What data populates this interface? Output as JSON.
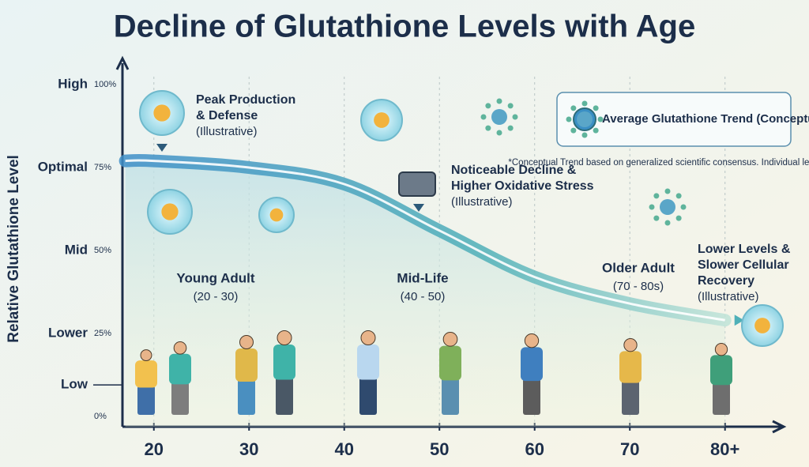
{
  "chart_data": {
    "type": "line",
    "title": "Decline of Glutathione Levels with Age",
    "y_label": "Relative Glutathione Level",
    "xlim": [
      16.7,
      86
    ],
    "xticks": [
      20,
      30,
      40,
      50,
      60,
      70,
      {
        "value": 80,
        "label": "80+"
      }
    ],
    "ylim": [
      0,
      100
    ],
    "yticks": [
      {
        "value": 100,
        "label": "100%"
      },
      {
        "value": 75,
        "label": "75%"
      },
      {
        "value": 50,
        "label": "50%"
      },
      {
        "value": 25,
        "label": "25%"
      },
      {
        "value": 0,
        "label": "0%"
      }
    ],
    "y_levels": [
      {
        "value": 100,
        "label": "High"
      },
      {
        "value": 75,
        "label": "Optimal"
      },
      {
        "value": 50,
        "label": "Mid"
      },
      {
        "value": 25,
        "label": "Lower"
      },
      {
        "value": 9.5,
        "label": "Low"
      }
    ],
    "grid": true,
    "series": [
      {
        "name": "Average Glutathione Trend (Conceptual)",
        "color": "#3a8fc4",
        "x": [
          17,
          20,
          30,
          40,
          50,
          60,
          70,
          80
        ],
        "values": [
          77,
          77,
          75,
          70,
          56,
          42,
          34,
          29
        ]
      }
    ],
    "note": "*Conceptual Trend based on generalized scientific consensus. Individual levels vary.*",
    "age_groups": [
      {
        "name": "Young Adult",
        "range": "(20 - 30)"
      },
      {
        "name": "Mid-Life",
        "range": "(40 - 50)"
      },
      {
        "name": "Older Adult",
        "range": "(70 - 80s)"
      }
    ],
    "callouts": [
      {
        "lines": [
          "Peak Production",
          "& Defense",
          "(Illustrative)"
        ]
      },
      {
        "lines": [
          "Noticeable Decline &",
          "Higher Oxidative Stress",
          "(Illustrative)"
        ]
      },
      {
        "lines": [
          "Lower Levels &",
          "Slower Cellular",
          "Recovery",
          "(Illustrative)"
        ]
      }
    ]
  }
}
